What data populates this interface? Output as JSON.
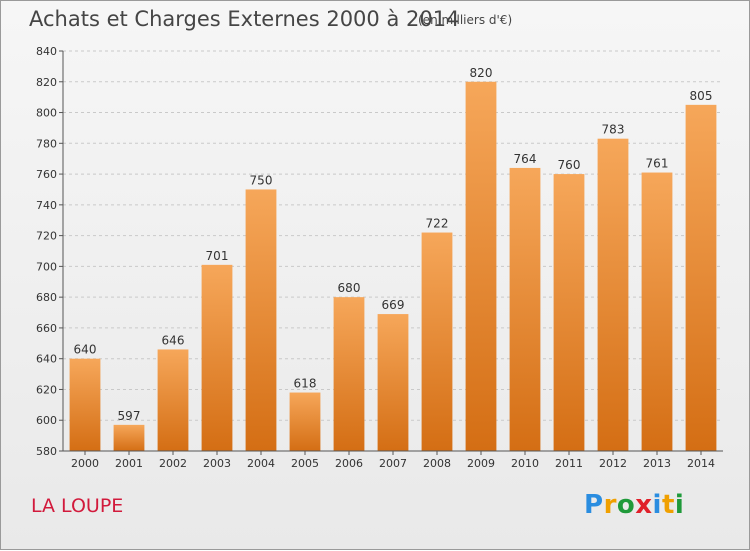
{
  "header": {
    "title": "Achats et Charges Externes 2000 à 2014",
    "subtitle": "(en milliers d'€)"
  },
  "footer": {
    "commune": "LA LOUPE",
    "brand": [
      "P",
      "r",
      "o",
      "x",
      "i",
      "t",
      "i"
    ],
    "brand_colors": [
      "#2a8de0",
      "#f0a000",
      "#1f9a3a",
      "#e0202a",
      "#2a8de0",
      "#f0a000",
      "#1f9a3a"
    ]
  },
  "chart_data": {
    "type": "bar",
    "categories": [
      "2000",
      "2001",
      "2002",
      "2003",
      "2004",
      "2005",
      "2006",
      "2007",
      "2008",
      "2009",
      "2010",
      "2011",
      "2012",
      "2013",
      "2014"
    ],
    "values": [
      640,
      597,
      646,
      701,
      750,
      618,
      680,
      669,
      722,
      820,
      764,
      760,
      783,
      761,
      805
    ],
    "ylim": [
      580,
      840
    ],
    "yticks": [
      580,
      600,
      620,
      640,
      660,
      680,
      700,
      720,
      740,
      760,
      780,
      800,
      820,
      840
    ],
    "bar_color_top": "#f6a75a",
    "bar_color_bottom": "#d46e14",
    "grid": "horizontal dashed"
  }
}
